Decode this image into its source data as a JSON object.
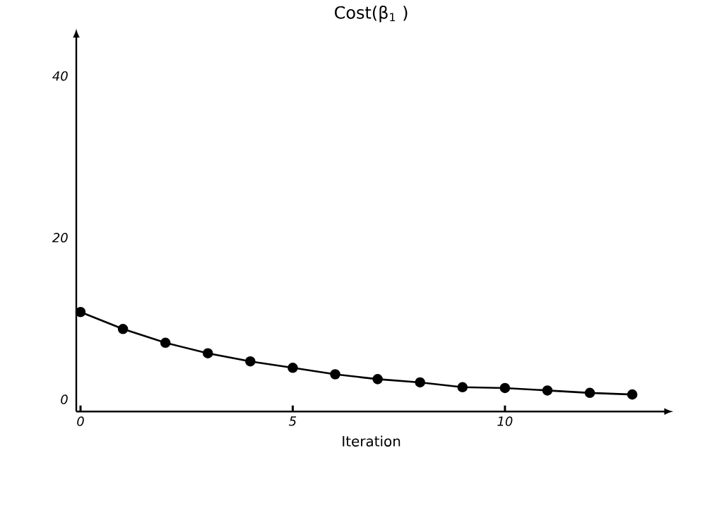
{
  "chart_data": {
    "type": "line",
    "title": "Cost(β$_{1}$ )",
    "xlabel": "Iteration",
    "x": [
      0,
      1,
      2,
      3,
      4,
      5,
      6,
      7,
      8,
      9,
      10,
      11,
      12,
      13
    ],
    "series": [
      {
        "color": "#000000",
        "values": [
          10.8,
          8.7,
          7.0,
          5.7,
          4.7,
          3.9,
          3.1,
          2.5,
          2.1,
          1.5,
          1.4,
          1.1,
          0.8,
          0.6
        ]
      }
    ],
    "xlim": [
      -0.1,
      13.8
    ],
    "ylim": [
      -1.5,
      45
    ],
    "xticks": [
      0,
      5,
      10
    ],
    "yticks": [
      0,
      20,
      40
    ],
    "marker": "circle",
    "line_style": "solid",
    "grid": false,
    "legend": false
  }
}
